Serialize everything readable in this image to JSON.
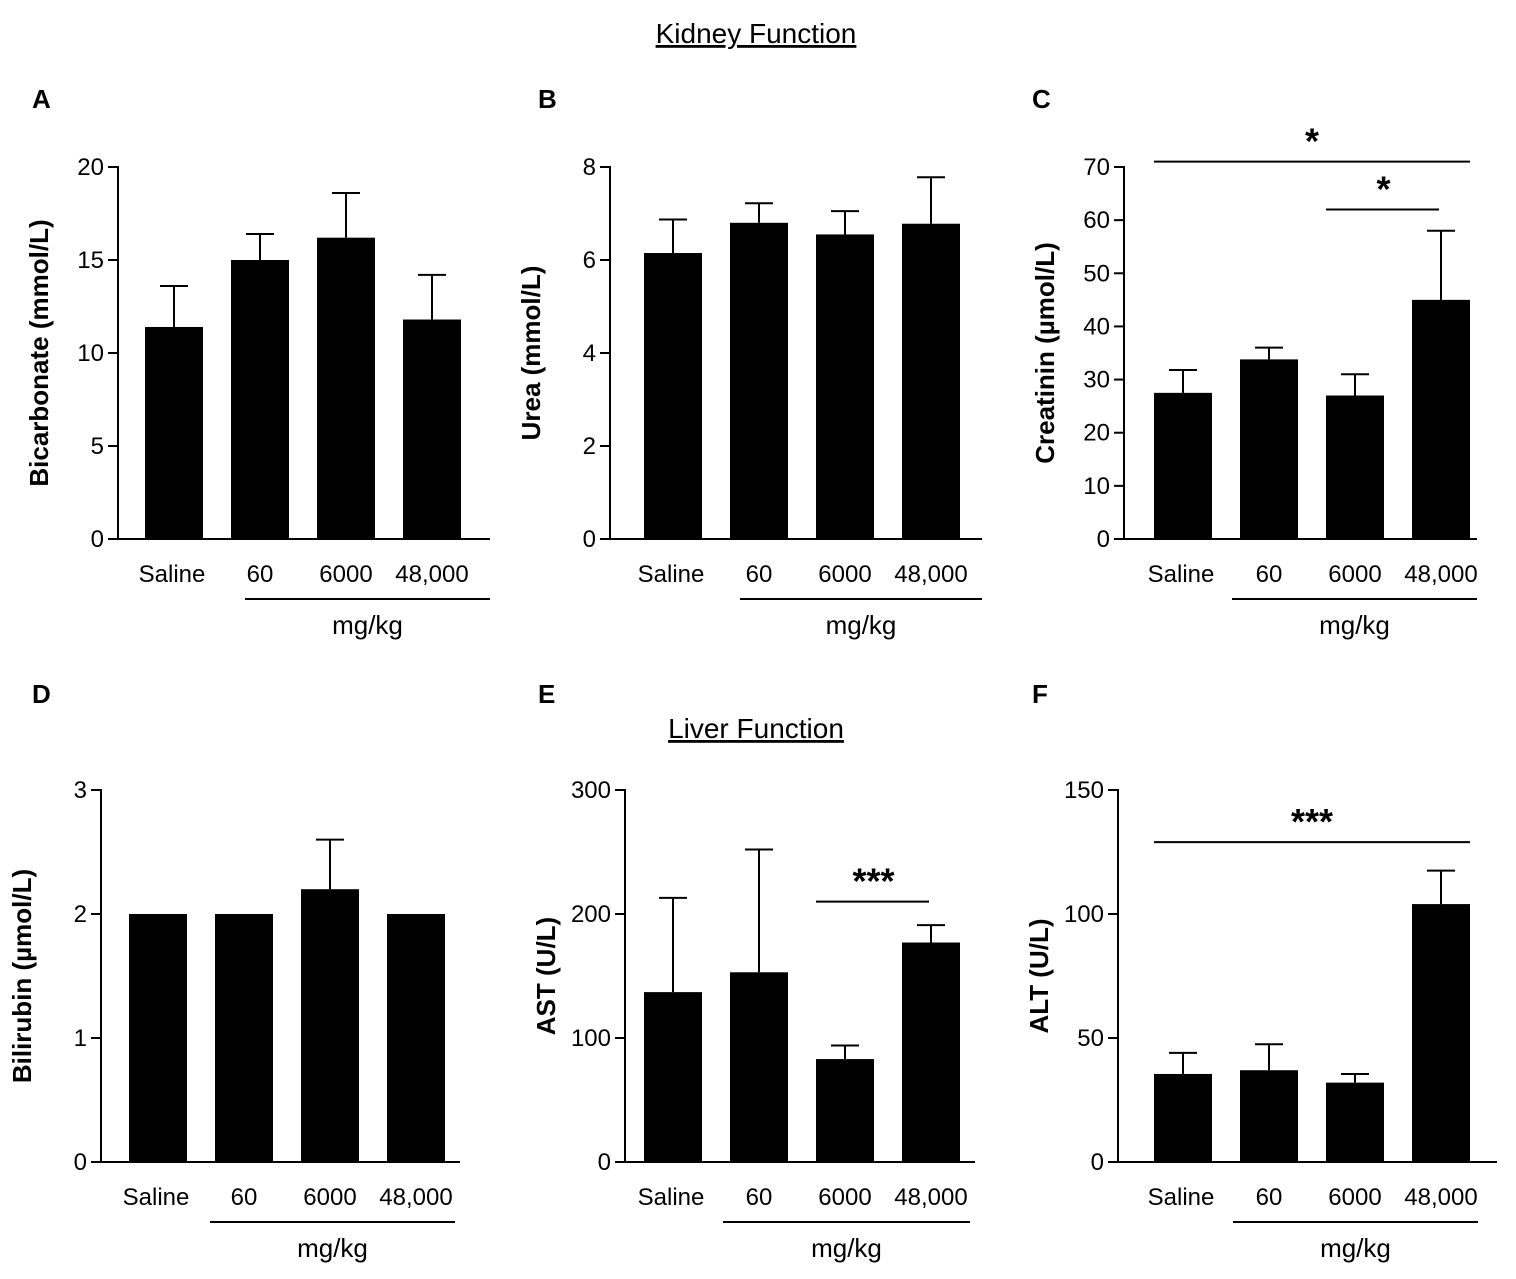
{
  "kidney_title": "Kidney Function",
  "liver_title": "Liver Function",
  "chart_data": [
    {
      "panel": "A",
      "type": "bar",
      "ylabel": "Bicarbonate (mmol/L)",
      "categories": [
        "Saline",
        "60",
        "6000",
        "48,000"
      ],
      "group_label": "mg/kg",
      "values": [
        11.4,
        15.0,
        16.2,
        11.8
      ],
      "errors": [
        2.2,
        1.4,
        2.4,
        2.4
      ],
      "ylim": [
        0,
        20
      ],
      "yticks": [
        0,
        5,
        10,
        15,
        20
      ],
      "ytick_labels": [
        "0",
        "5",
        "10",
        "15",
        "20"
      ],
      "significance": []
    },
    {
      "panel": "B",
      "type": "bar",
      "ylabel": "Urea (mmol/L)",
      "categories": [
        "Saline",
        "60",
        "6000",
        "48,000"
      ],
      "group_label": "mg/kg",
      "values": [
        6.15,
        6.8,
        6.55,
        6.78
      ],
      "errors": [
        0.72,
        0.42,
        0.5,
        1.0
      ],
      "ylim": [
        0,
        8
      ],
      "yticks": [
        0,
        2,
        4,
        6,
        8
      ],
      "ytick_labels": [
        "0",
        "2",
        "4",
        "6",
        "8"
      ],
      "significance": []
    },
    {
      "panel": "C",
      "type": "bar",
      "ylabel": "Creatinin (µmol/L)",
      "categories": [
        "Saline",
        "60",
        "6000",
        "48,000"
      ],
      "group_label": "mg/kg",
      "values": [
        27.5,
        33.8,
        27.0,
        45.0
      ],
      "errors": [
        4.3,
        2.2,
        4.0,
        13.0
      ],
      "ylim": [
        0,
        70
      ],
      "yticks": [
        0,
        10,
        20,
        30,
        40,
        50,
        60,
        70
      ],
      "ytick_labels": [
        "0",
        "10",
        "20",
        "30",
        "40",
        "50",
        "60",
        "70"
      ],
      "significance": [
        {
          "from": 0,
          "to": 3,
          "y": 71,
          "label": "*"
        },
        {
          "from": 2,
          "to": 3,
          "y": 62,
          "label": "*"
        }
      ]
    },
    {
      "panel": "D",
      "type": "bar",
      "ylabel": "Bilirubin (µmol/L)",
      "categories": [
        "Saline",
        "60",
        "6000",
        "48,000"
      ],
      "group_label": "mg/kg",
      "values": [
        2.0,
        2.0,
        2.2,
        2.0
      ],
      "errors": [
        0,
        0,
        0.4,
        0
      ],
      "ylim": [
        0,
        3
      ],
      "yticks": [
        0,
        1,
        2,
        3
      ],
      "ytick_labels": [
        "0",
        "1",
        "2",
        "3"
      ],
      "significance": []
    },
    {
      "panel": "E",
      "type": "bar",
      "ylabel": "AST (U/L)",
      "categories": [
        "Saline",
        "60",
        "6000",
        "48,000"
      ],
      "group_label": "mg/kg",
      "values": [
        137,
        153,
        83,
        177
      ],
      "errors": [
        76,
        99,
        11,
        14
      ],
      "ylim": [
        0,
        300
      ],
      "yticks": [
        0,
        100,
        200,
        300
      ],
      "ytick_labels": [
        "0",
        "100",
        "200",
        "300"
      ],
      "significance": [
        {
          "from": 2,
          "to": 3,
          "y": 210,
          "label": "***"
        }
      ]
    },
    {
      "panel": "F",
      "type": "bar",
      "ylabel": "ALT (U/L)",
      "categories": [
        "Saline",
        "60",
        "6000",
        "48,000"
      ],
      "group_label": "mg/kg",
      "values": [
        35.5,
        37.0,
        32.0,
        104
      ],
      "errors": [
        8.5,
        10.5,
        3.5,
        13.5
      ],
      "ylim": [
        0,
        150
      ],
      "yticks": [
        0,
        50,
        100,
        150
      ],
      "ytick_labels": [
        "0",
        "50",
        "100",
        "150"
      ],
      "significance": [
        {
          "from": 0,
          "to": 3,
          "y": 129,
          "label": "***"
        }
      ]
    }
  ]
}
